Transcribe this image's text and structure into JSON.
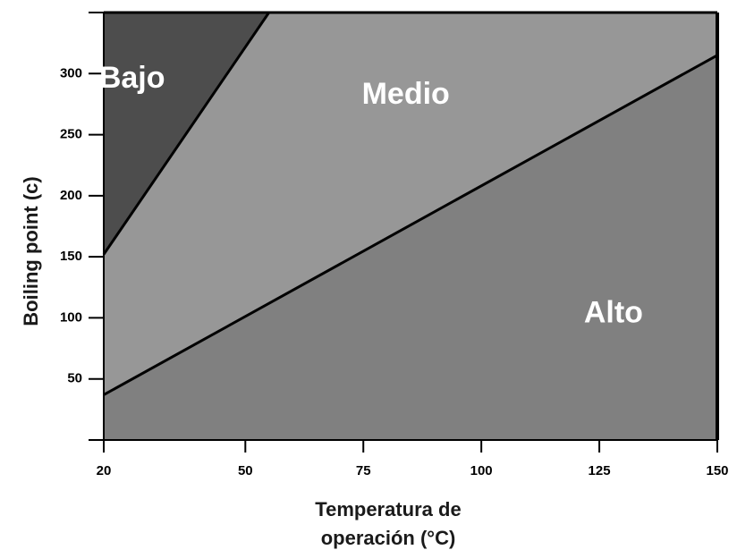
{
  "chart_data": {
    "type": "area",
    "xlabel_lines": [
      "Temperatura de",
      "operación (°C)"
    ],
    "ylabel": "Boiling point (c)",
    "x_ticks": [
      20,
      50,
      75,
      100,
      125,
      150
    ],
    "y_ticks": [
      50,
      100,
      150,
      200,
      250,
      300
    ],
    "xlim": [
      20,
      150
    ],
    "ylim": [
      0,
      350
    ],
    "boundaries": [
      {
        "points": [
          [
            20,
            152
          ],
          [
            55,
            350
          ]
        ]
      },
      {
        "points": [
          [
            20,
            37
          ],
          [
            150,
            315
          ]
        ]
      }
    ],
    "regions": [
      {
        "name": "Bajo",
        "color": "#4d4d4d",
        "label_at": [
          26,
          295
        ]
      },
      {
        "name": "Medio",
        "color": "#979797",
        "label_at": [
          84,
          282
        ]
      },
      {
        "name": "Alto",
        "color": "#808080",
        "label_at": [
          128,
          103
        ]
      }
    ]
  }
}
